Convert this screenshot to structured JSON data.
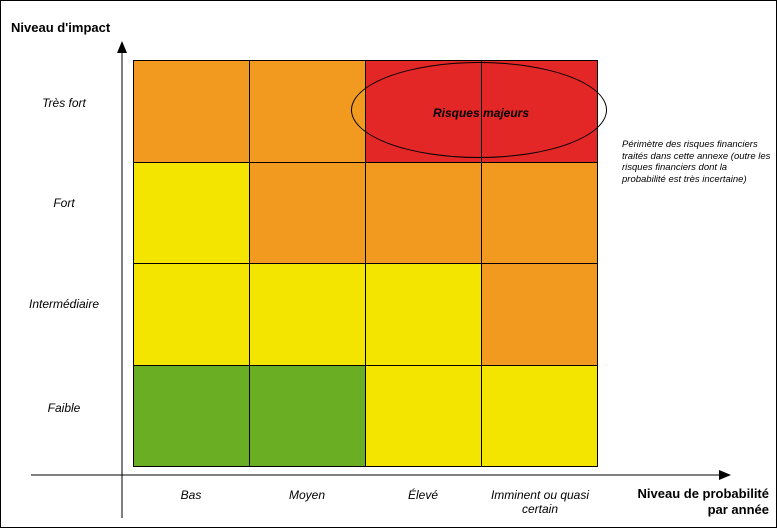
{
  "title": {
    "y_axis": "Niveau d'impact",
    "x_axis_line1": "Niveau de probabilité",
    "x_axis_line2": "par année"
  },
  "impact_levels": [
    "Très fort",
    "Fort",
    "Intermédiaire",
    "Faible"
  ],
  "probability_levels": [
    "Bas",
    "Moyen",
    "Élevé",
    "Imminent ou quasi certain"
  ],
  "matrix": {
    "colors": {
      "green": "#6aaf23",
      "yellow": "#f3e500",
      "orange": "#f29a1f",
      "red": "#e32726"
    },
    "rows": [
      [
        "orange",
        "orange",
        "red",
        "red"
      ],
      [
        "yellow",
        "orange",
        "orange",
        "orange"
      ],
      [
        "yellow",
        "yellow",
        "yellow",
        "orange"
      ],
      [
        "green",
        "green",
        "yellow",
        "yellow"
      ]
    ]
  },
  "major_risks_label": "Risques majeurs",
  "note": "Périmètre des risques financiers traités dans cette annexe (outre les risques financiers dont la probabilité est très incertaine)"
}
